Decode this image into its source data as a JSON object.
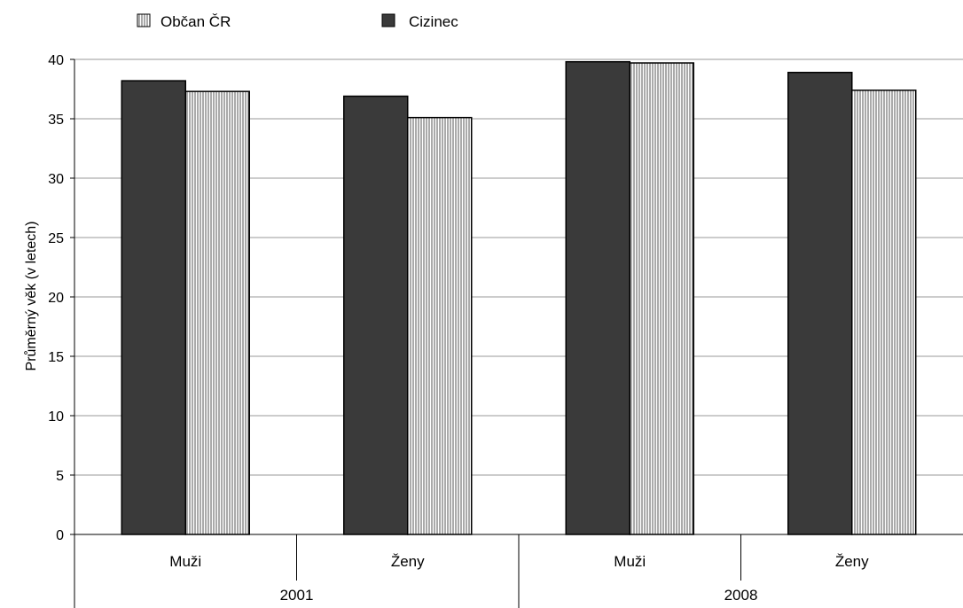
{
  "chart_data": {
    "type": "bar",
    "title": "",
    "xlabel": "",
    "ylabel": "Průměrný věk (v letech)",
    "ylim": [
      0,
      40
    ],
    "yticks": [
      0,
      5,
      10,
      15,
      20,
      25,
      30,
      35,
      40
    ],
    "grid": true,
    "legend_position": "top-left",
    "groups": [
      {
        "label": "2001",
        "categories": [
          "Muži",
          "Ženy"
        ]
      },
      {
        "label": "2008",
        "categories": [
          "Muži",
          "Ženy"
        ]
      }
    ],
    "categories": [
      "Muži",
      "Ženy",
      "Muži",
      "Ženy"
    ],
    "series": [
      {
        "name": "Cizinec",
        "pattern": "solid",
        "color": "#3a3a3a",
        "values": [
          38.2,
          36.9,
          39.8,
          38.9
        ]
      },
      {
        "name": "Občan ČR",
        "pattern": "vertical-hatch",
        "color": "#ffffff",
        "values": [
          37.3,
          35.1,
          39.7,
          37.4
        ]
      }
    ],
    "legend": [
      {
        "name": "Občan ČR",
        "pattern": "vertical-hatch"
      },
      {
        "name": "Cizinec",
        "pattern": "solid"
      }
    ]
  }
}
